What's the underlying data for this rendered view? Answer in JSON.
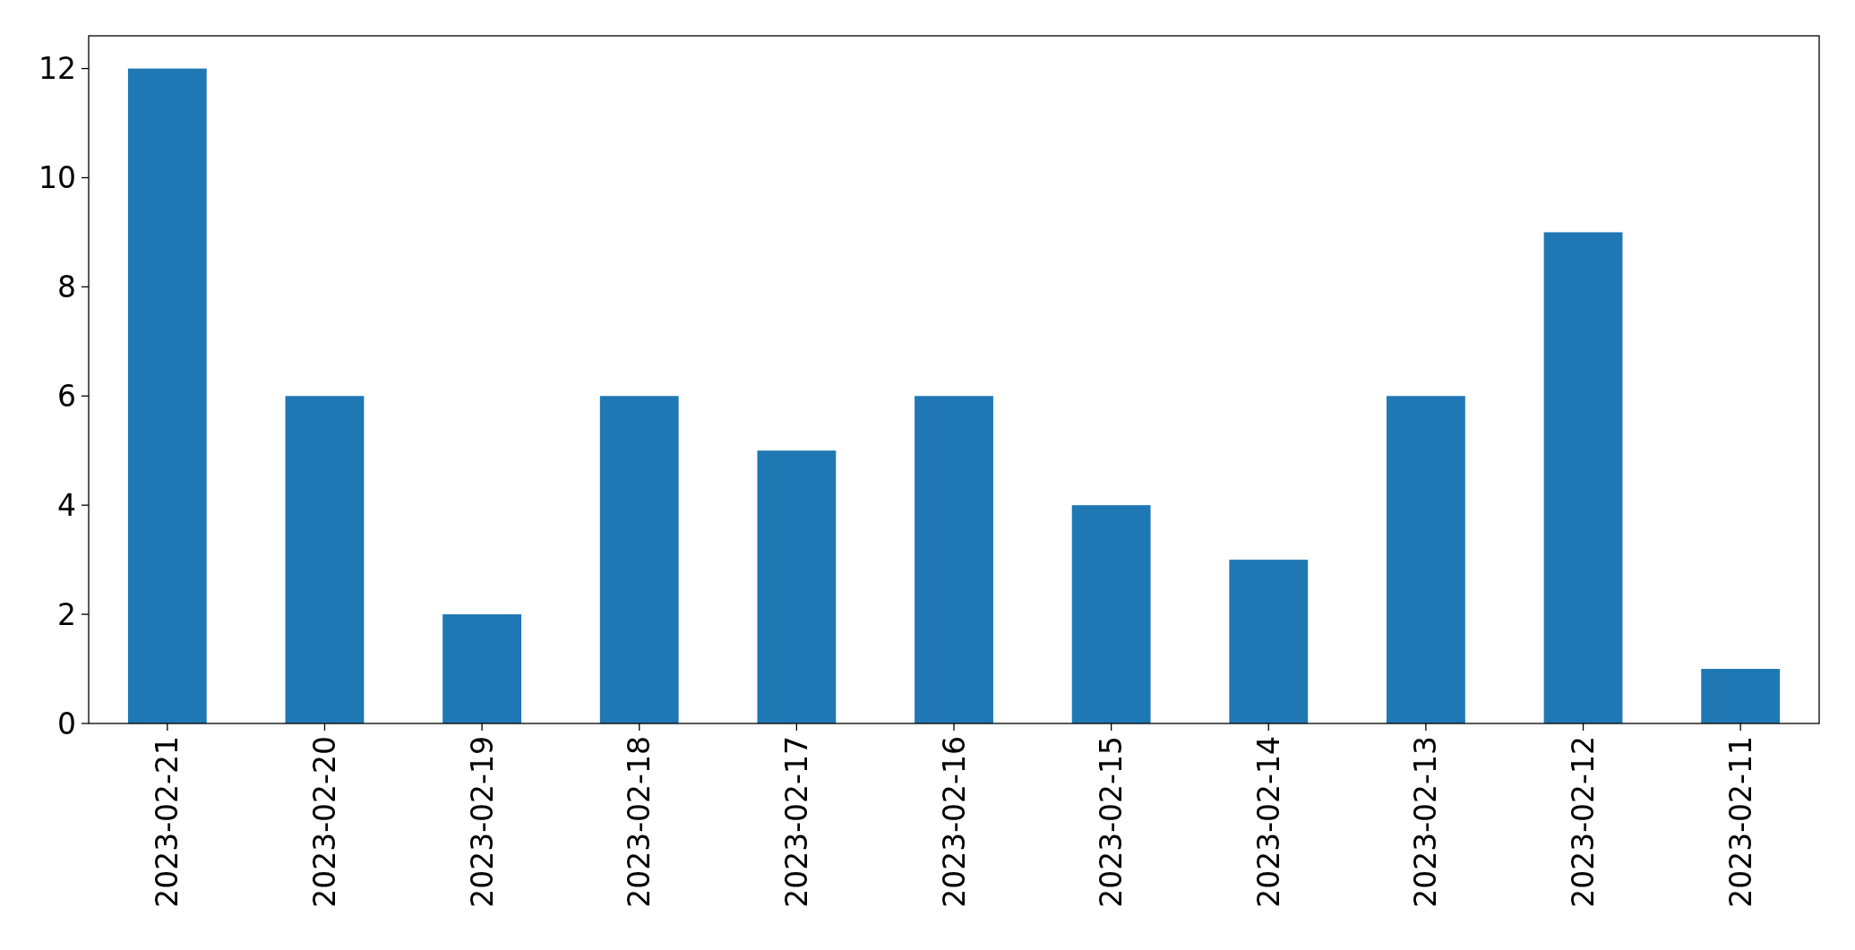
{
  "chart_data": {
    "type": "bar",
    "categories": [
      "2023-02-21",
      "2023-02-20",
      "2023-02-19",
      "2023-02-18",
      "2023-02-17",
      "2023-02-16",
      "2023-02-15",
      "2023-02-14",
      "2023-02-13",
      "2023-02-12",
      "2023-02-11"
    ],
    "values": [
      12,
      6,
      2,
      6,
      5,
      6,
      4,
      3,
      6,
      9,
      1
    ],
    "color": "#1f77b4",
    "ylim": [
      0,
      12.6
    ],
    "yticks": [
      0,
      2,
      4,
      6,
      8,
      10,
      12
    ],
    "grid": false
  }
}
